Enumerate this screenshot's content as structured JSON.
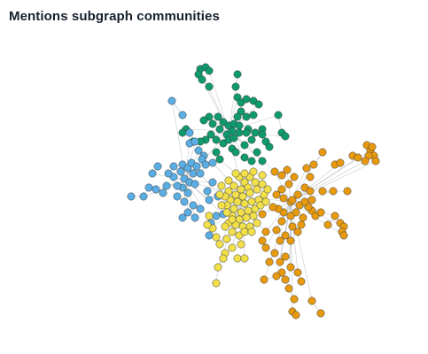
{
  "title": "Mentions subgraph communities",
  "colors": {
    "green": "#0f9a6e",
    "blue": "#5aaee3",
    "yellow": "#f2e04a",
    "orange": "#e79a10",
    "edge": "#b9bec4"
  }
}
